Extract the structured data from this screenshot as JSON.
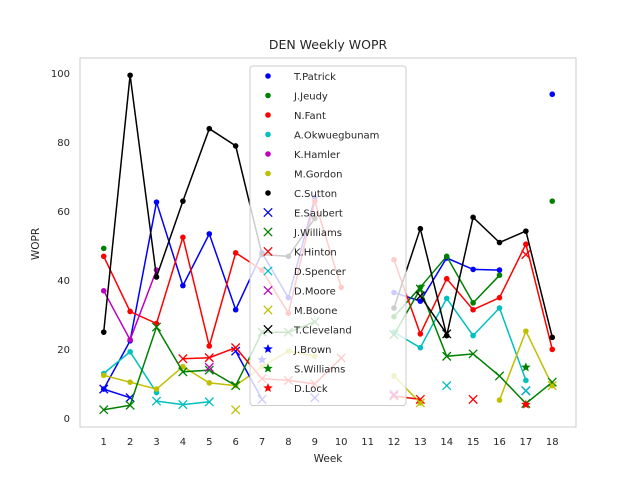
{
  "chart_data": {
    "type": "line",
    "title": "DEN Weekly WOPR",
    "xlabel": "Week",
    "ylabel": "WOPR",
    "x_ticks": [
      1,
      2,
      3,
      4,
      5,
      6,
      7,
      8,
      9,
      10,
      11,
      12,
      13,
      14,
      15,
      16,
      17,
      18
    ],
    "y_ticks": [
      0,
      20,
      40,
      60,
      80,
      100
    ],
    "xlim": [
      0.1,
      18.9
    ],
    "ylim": [
      -2.5,
      104.5
    ],
    "grid": true,
    "legend_position": "upper-center",
    "series": [
      {
        "name": "T.Patrick",
        "color": "#0000ff",
        "marker": "dot",
        "points": [
          [
            1,
            8.5
          ],
          [
            2,
            22.5
          ],
          [
            3,
            62.7
          ],
          [
            4,
            38.5
          ],
          [
            5,
            53.5
          ],
          [
            6,
            31.5
          ],
          [
            7,
            48
          ],
          [
            8,
            35
          ],
          [
            9,
            64
          ],
          [
            12,
            36.5
          ],
          [
            13,
            34
          ],
          [
            14,
            46.5
          ],
          [
            15,
            43.2
          ],
          [
            16,
            43
          ],
          [
            18,
            94
          ]
        ]
      },
      {
        "name": "J.Jeudy",
        "color": "#008000",
        "marker": "dot",
        "points": [
          [
            1,
            49.3
          ],
          [
            12,
            29.5
          ],
          [
            13,
            38
          ],
          [
            14,
            47
          ],
          [
            15,
            33.5
          ],
          [
            16,
            41.5
          ],
          [
            18,
            63
          ]
        ]
      },
      {
        "name": "N.Fant",
        "color": "#ff0000",
        "marker": "dot",
        "points": [
          [
            1,
            47
          ],
          [
            2,
            31
          ],
          [
            3,
            27.5
          ],
          [
            4,
            52.5
          ],
          [
            5,
            21
          ],
          [
            6,
            48
          ],
          [
            7,
            43
          ],
          [
            8,
            30.5
          ],
          [
            9,
            63
          ],
          [
            10,
            38
          ],
          [
            12,
            46
          ],
          [
            13,
            24.5
          ],
          [
            14,
            40.5
          ],
          [
            15,
            31.5
          ],
          [
            16,
            35
          ],
          [
            17,
            50.5
          ],
          [
            18,
            20
          ]
        ]
      },
      {
        "name": "A.Okwuegbunam",
        "color": "#00bfbf",
        "marker": "dot",
        "points": [
          [
            1,
            13
          ],
          [
            2,
            19.3
          ],
          [
            3,
            7.5
          ],
          [
            12,
            25
          ],
          [
            13,
            20.5
          ],
          [
            14,
            34.8
          ],
          [
            15,
            24
          ],
          [
            16,
            32
          ],
          [
            17,
            11
          ]
        ]
      },
      {
        "name": "K.Hamler",
        "color": "#bf00bf",
        "marker": "dot",
        "points": [
          [
            1,
            37
          ],
          [
            2,
            22.8
          ],
          [
            3,
            43
          ]
        ]
      },
      {
        "name": "M.Gordon",
        "color": "#bfbf00",
        "marker": "dot",
        "points": [
          [
            1,
            12.5
          ],
          [
            2,
            10.5
          ],
          [
            3,
            8.5
          ],
          [
            4,
            15
          ],
          [
            5,
            10.3
          ],
          [
            6,
            9.5
          ],
          [
            7,
            15
          ],
          [
            8,
            19.5
          ],
          [
            9,
            18
          ],
          [
            12,
            12.3
          ],
          [
            13,
            4.5
          ],
          [
            16,
            5.3
          ],
          [
            17,
            25.3
          ],
          [
            18,
            9.5
          ]
        ]
      },
      {
        "name": "C.Sutton",
        "color": "#000000",
        "marker": "dot",
        "points": [
          [
            1,
            25
          ],
          [
            2,
            99.5
          ],
          [
            3,
            41
          ],
          [
            4,
            63
          ],
          [
            5,
            84
          ],
          [
            6,
            79
          ],
          [
            7,
            47.5
          ],
          [
            8,
            47
          ],
          [
            9,
            58
          ],
          [
            12,
            32
          ],
          [
            13,
            55
          ],
          [
            14,
            24
          ],
          [
            15,
            58.3
          ],
          [
            16,
            51
          ],
          [
            17,
            54.3
          ],
          [
            18,
            23.5
          ]
        ]
      },
      {
        "name": "E.Saubert",
        "color": "#0000ff",
        "marker": "x",
        "points": [
          [
            1,
            8.5
          ],
          [
            2,
            6
          ],
          [
            6,
            19.5
          ],
          [
            7,
            5.5
          ],
          [
            9,
            6
          ],
          [
            17,
            8
          ]
        ]
      },
      {
        "name": "J.Williams",
        "color": "#008000",
        "marker": "x",
        "points": [
          [
            1,
            2.5
          ],
          [
            2,
            3.8
          ],
          [
            3,
            26.5
          ],
          [
            4,
            13.5
          ],
          [
            5,
            14
          ],
          [
            6,
            9.5
          ],
          [
            7,
            25
          ],
          [
            8,
            25
          ],
          [
            9,
            28
          ],
          [
            12,
            24.3
          ],
          [
            13,
            37.5
          ],
          [
            14,
            18
          ],
          [
            15,
            18.7
          ],
          [
            16,
            12.3
          ],
          [
            17,
            4.3
          ],
          [
            18,
            10.5
          ]
        ]
      },
      {
        "name": "K.Hinton",
        "color": "#ff0000",
        "marker": "x",
        "points": [
          [
            4,
            17.3
          ],
          [
            5,
            17.6
          ],
          [
            6,
            20.5
          ],
          [
            7,
            11.5
          ],
          [
            8,
            11
          ],
          [
            9,
            10
          ],
          [
            10,
            17.5
          ],
          [
            12,
            6.5
          ],
          [
            13,
            5.5
          ],
          [
            15,
            5.5
          ],
          [
            17,
            47.5
          ]
        ]
      },
      {
        "name": "D.Spencer",
        "color": "#00bfbf",
        "marker": "x",
        "points": [
          [
            3,
            5
          ],
          [
            4,
            4
          ],
          [
            5,
            4.8
          ],
          [
            14,
            9.5
          ],
          [
            17,
            8
          ]
        ]
      },
      {
        "name": "D.Moore",
        "color": "#bf00bf",
        "marker": "x",
        "points": [
          [
            5,
            14.8
          ],
          [
            12,
            7
          ]
        ]
      },
      {
        "name": "M.Boone",
        "color": "#bfbf00",
        "marker": "x",
        "points": [
          [
            6,
            2.5
          ],
          [
            13,
            4.5
          ],
          [
            18,
            9.5
          ]
        ]
      },
      {
        "name": "T.Cleveland",
        "color": "#000000",
        "marker": "x",
        "points": [
          [
            13,
            35.5
          ],
          [
            14,
            24.5
          ]
        ]
      },
      {
        "name": "J.Brown",
        "color": "#0000ff",
        "marker": "star",
        "points": [
          [
            7,
            17
          ]
        ]
      },
      {
        "name": "S.Williams",
        "color": "#008000",
        "marker": "star",
        "points": [
          [
            17,
            14.8
          ]
        ]
      },
      {
        "name": "D.Lock",
        "color": "#ff0000",
        "marker": "star",
        "points": [
          [
            17,
            4
          ]
        ]
      }
    ]
  }
}
